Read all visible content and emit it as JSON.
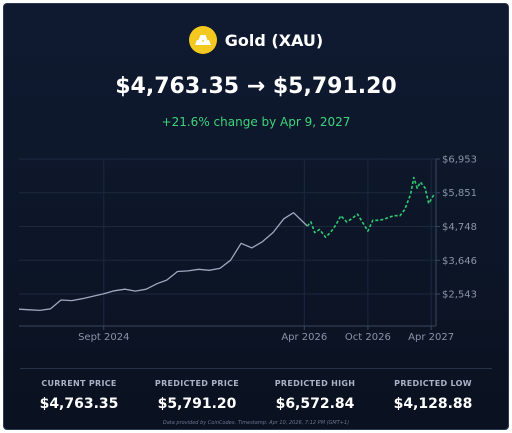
{
  "header": {
    "coin_name": "Gold (XAU)",
    "price_line": "$4,763.35 → $5,791.20",
    "change_line": "+21.6% change by Apr 9, 2027",
    "icon": "gold-bars-icon",
    "accent_color": "#f3c81f"
  },
  "stats": [
    {
      "label": "CURRENT PRICE",
      "value": "$4,763.35"
    },
    {
      "label": "PREDICTED PRICE",
      "value": "$5,791.20"
    },
    {
      "label": "PREDICTED HIGH",
      "value": "$6,572.84"
    },
    {
      "label": "PREDICTED LOW",
      "value": "$4,128.88"
    }
  ],
  "footer": "Data provided by CoinCodex. Timestamp: Apr 10, 2026, 7:12 PM (GMT+1)",
  "chart_data": {
    "type": "line",
    "title": "",
    "xlabel": "",
    "ylabel": "",
    "x_ticks": [
      "Sept 2024",
      "Apr 2026",
      "Oct 2026",
      "Apr 2027"
    ],
    "y_ticks": [
      "$6,953",
      "$5,851",
      "$4,748",
      "$3,646",
      "$2,543"
    ],
    "ylim": [
      1500,
      6953
    ],
    "grid": true,
    "series": [
      {
        "style": "solid",
        "color": "#9ea7c0",
        "points": [
          [
            "2024-01-01",
            2050
          ],
          [
            "2024-02-01",
            2030
          ],
          [
            "2024-03-01",
            2010
          ],
          [
            "2024-04-01",
            2060
          ],
          [
            "2024-05-01",
            2350
          ],
          [
            "2024-06-01",
            2330
          ],
          [
            "2024-07-01",
            2390
          ],
          [
            "2024-08-01",
            2470
          ],
          [
            "2024-09-01",
            2550
          ],
          [
            "2024-10-01",
            2650
          ],
          [
            "2024-11-01",
            2700
          ],
          [
            "2024-12-01",
            2640
          ],
          [
            "2025-01-01",
            2700
          ],
          [
            "2025-02-01",
            2880
          ],
          [
            "2025-03-01",
            3000
          ],
          [
            "2025-04-01",
            3280
          ],
          [
            "2025-05-01",
            3300
          ],
          [
            "2025-06-01",
            3350
          ],
          [
            "2025-07-01",
            3320
          ],
          [
            "2025-08-01",
            3380
          ],
          [
            "2025-09-01",
            3650
          ],
          [
            "2025-10-01",
            4200
          ],
          [
            "2025-11-01",
            4050
          ],
          [
            "2025-12-01",
            4250
          ],
          [
            "2026-01-01",
            4550
          ],
          [
            "2026-02-01",
            5000
          ],
          [
            "2026-03-01",
            5200
          ],
          [
            "2026-04-10",
            4763
          ]
        ]
      },
      {
        "style": "dashed",
        "color": "#2ecc71",
        "points": [
          [
            "2026-04-10",
            4763
          ],
          [
            "2026-04-20",
            4900
          ],
          [
            "2026-05-01",
            4550
          ],
          [
            "2026-05-15",
            4650
          ],
          [
            "2026-06-01",
            4400
          ],
          [
            "2026-06-15",
            4550
          ],
          [
            "2026-07-01",
            4800
          ],
          [
            "2026-07-15",
            5100
          ],
          [
            "2026-08-01",
            4900
          ],
          [
            "2026-08-15",
            5000
          ],
          [
            "2026-09-01",
            5150
          ],
          [
            "2026-09-15",
            4900
          ],
          [
            "2026-10-01",
            4600
          ],
          [
            "2026-10-15",
            4950
          ],
          [
            "2026-11-01",
            4950
          ],
          [
            "2026-11-15",
            4980
          ],
          [
            "2026-12-01",
            5050
          ],
          [
            "2026-12-15",
            5100
          ],
          [
            "2027-01-01",
            5100
          ],
          [
            "2027-01-15",
            5300
          ],
          [
            "2027-02-01",
            5800
          ],
          [
            "2027-02-10",
            6350
          ],
          [
            "2027-02-20",
            6000
          ],
          [
            "2027-03-01",
            6200
          ],
          [
            "2027-03-15",
            6000
          ],
          [
            "2027-03-25",
            5500
          ],
          [
            "2027-04-09",
            5791
          ]
        ]
      }
    ]
  }
}
